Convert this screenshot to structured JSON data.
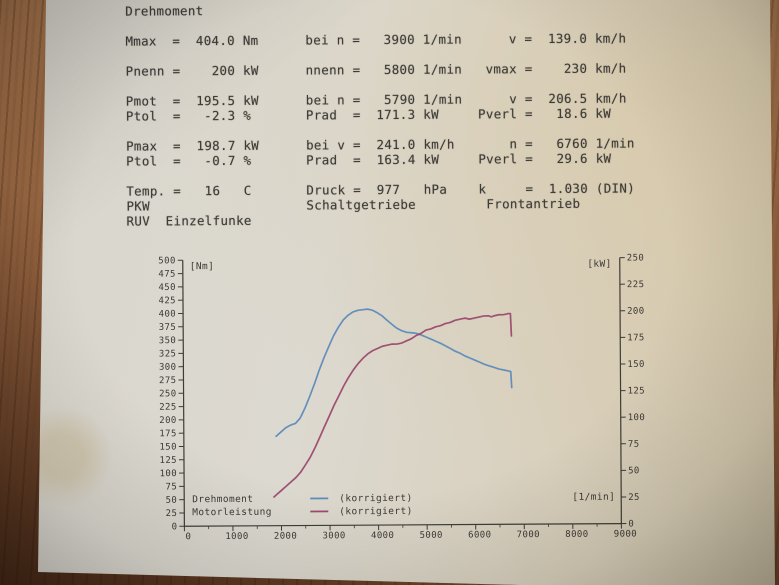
{
  "colors": {
    "paper": "#dbd7cc",
    "paper_warm": "#d6c9ae",
    "wood": "#9a6843",
    "wood_dark": "#6e4227",
    "ink": "#3e3c37",
    "torque_curve": "#5d8cba",
    "power_curve": "#9b4a6e"
  },
  "report": {
    "lines": [
      "Drehmoment",
      "",
      "Mmax  =  404.0 Nm      bei n =   3900 1/min      v =  139.0 km/h",
      "",
      "Pnenn =    200 kW      nnenn =   5800 1/min   vmax =    230 km/h",
      "",
      "Pmot  =  195.5 kW      bei n =   5790 1/min      v =  206.5 km/h",
      "Ptol  =   -2.3 %       Prad  =  171.3 kW     Pverl =   18.6 kW",
      "",
      "Pmax  =  198.7 kW      bei v =  241.0 km/h       n =   6760 1/min",
      "Ptol  =   -0.7 %       Prad  =  163.4 kW     Pverl =   29.6 kW",
      "",
      "Temp. =   16   C       Druck =  977   hPa    k     =  1.030 (DIN)",
      "PKW                    Schaltgetriebe         Frontantrieb",
      "RUV  Einzelfunke"
    ]
  },
  "chart_data": {
    "type": "line",
    "title": "",
    "x_label": "[1/min]",
    "y_left_label": "[Nm]",
    "y_right_label": "[kW]",
    "x_range": [
      0,
      9000
    ],
    "x_tick_step": 1000,
    "y_left_range": [
      0,
      500
    ],
    "y_right_range": [
      0,
      250
    ],
    "y_tick_step": 25,
    "grid": false,
    "legend_position": "bottom-left-inside",
    "legend": [
      {
        "label": "Drehmoment",
        "note": "(korrigiert)",
        "color": "#5d8cba",
        "axis": "left",
        "unit": "Nm"
      },
      {
        "label": "Motorleistung",
        "note": "(korrigiert)",
        "color": "#9b4a6e",
        "axis": "right",
        "unit": "kW"
      }
    ],
    "series": [
      {
        "name": "Drehmoment (korrigiert)",
        "axis": "left",
        "unit": "Nm",
        "color": "#5d8cba",
        "points": [
          [
            1900,
            168
          ],
          [
            2000,
            176
          ],
          [
            2100,
            184
          ],
          [
            2200,
            189
          ],
          [
            2300,
            192
          ],
          [
            2400,
            202
          ],
          [
            2500,
            221
          ],
          [
            2600,
            243
          ],
          [
            2700,
            267
          ],
          [
            2800,
            293
          ],
          [
            2900,
            316
          ],
          [
            3000,
            337
          ],
          [
            3100,
            357
          ],
          [
            3200,
            373
          ],
          [
            3300,
            386
          ],
          [
            3400,
            395
          ],
          [
            3500,
            401
          ],
          [
            3600,
            404
          ],
          [
            3700,
            405
          ],
          [
            3800,
            406
          ],
          [
            3900,
            404
          ],
          [
            4000,
            399
          ],
          [
            4100,
            393
          ],
          [
            4200,
            385
          ],
          [
            4300,
            377
          ],
          [
            4400,
            370
          ],
          [
            4500,
            365
          ],
          [
            4600,
            362
          ],
          [
            4700,
            361
          ],
          [
            4800,
            360
          ],
          [
            4900,
            357
          ],
          [
            5000,
            353
          ],
          [
            5100,
            349
          ],
          [
            5200,
            345
          ],
          [
            5300,
            341
          ],
          [
            5400,
            336
          ],
          [
            5500,
            331
          ],
          [
            5600,
            326
          ],
          [
            5700,
            322
          ],
          [
            5800,
            317
          ],
          [
            5900,
            313
          ],
          [
            6000,
            309
          ],
          [
            6100,
            305
          ],
          [
            6200,
            301
          ],
          [
            6300,
            298
          ],
          [
            6400,
            295
          ],
          [
            6500,
            292
          ],
          [
            6600,
            290
          ],
          [
            6700,
            288
          ],
          [
            6740,
            287
          ],
          [
            6760,
            257
          ]
        ]
      },
      {
        "name": "Motorleistung (korrigiert)",
        "axis": "right",
        "unit": "kW",
        "color": "#9b4a6e",
        "points": [
          [
            1850,
            27
          ],
          [
            1900,
            29
          ],
          [
            2000,
            33
          ],
          [
            2100,
            37
          ],
          [
            2200,
            41
          ],
          [
            2300,
            45
          ],
          [
            2400,
            50
          ],
          [
            2500,
            57
          ],
          [
            2600,
            64
          ],
          [
            2700,
            73
          ],
          [
            2800,
            83
          ],
          [
            2900,
            93
          ],
          [
            3000,
            103
          ],
          [
            3100,
            113
          ],
          [
            3200,
            122
          ],
          [
            3300,
            131
          ],
          [
            3400,
            139
          ],
          [
            3500,
            146
          ],
          [
            3600,
            152
          ],
          [
            3700,
            157
          ],
          [
            3800,
            161
          ],
          [
            3900,
            164
          ],
          [
            4000,
            166
          ],
          [
            4100,
            168
          ],
          [
            4200,
            169
          ],
          [
            4300,
            170
          ],
          [
            4400,
            170
          ],
          [
            4500,
            171
          ],
          [
            4600,
            173
          ],
          [
            4700,
            175
          ],
          [
            4800,
            178
          ],
          [
            4900,
            180
          ],
          [
            5000,
            183
          ],
          [
            5100,
            184
          ],
          [
            5200,
            186
          ],
          [
            5300,
            187
          ],
          [
            5400,
            189
          ],
          [
            5500,
            190
          ],
          [
            5600,
            192
          ],
          [
            5700,
            193
          ],
          [
            5800,
            194
          ],
          [
            5900,
            193
          ],
          [
            6000,
            194
          ],
          [
            6100,
            195
          ],
          [
            6200,
            196
          ],
          [
            6300,
            196
          ],
          [
            6350,
            195
          ],
          [
            6400,
            196
          ],
          [
            6500,
            197
          ],
          [
            6600,
            197
          ],
          [
            6700,
            198
          ],
          [
            6740,
            198
          ],
          [
            6760,
            177
          ]
        ]
      }
    ]
  }
}
